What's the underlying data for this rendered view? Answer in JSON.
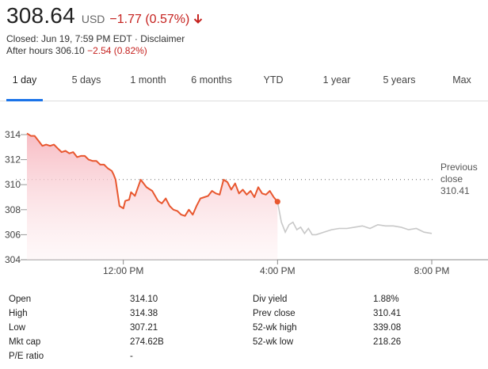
{
  "quote": {
    "price": "308.64",
    "currency": "USD",
    "change": "−1.77 (0.57%)",
    "closed_text": "Closed: Jun 19, 7:59 PM EDT · ",
    "disclaimer": "Disclaimer",
    "after_hours_label": "After hours 306.10",
    "after_hours_change": "−2.54 (0.82%)",
    "down_color": "#c5221f",
    "arrow_icon": "arrow-down-icon"
  },
  "tabs": [
    {
      "label": "1 day",
      "active": true
    },
    {
      "label": "5 days"
    },
    {
      "label": "1 month"
    },
    {
      "label": "6 months"
    },
    {
      "label": "YTD"
    },
    {
      "label": "1 year"
    },
    {
      "label": "5 years"
    },
    {
      "label": "Max"
    }
  ],
  "chart_data": {
    "type": "line",
    "y_ticks": [
      "314",
      "312",
      "310",
      "308",
      "306",
      "304"
    ],
    "x_ticks": [
      "12:00 PM",
      "4:00 PM",
      "8:00 PM"
    ],
    "ylim": [
      304,
      315
    ],
    "x_range_hours": [
      "9:30",
      "20:00"
    ],
    "previous_close_label_1": "Previous",
    "previous_close_label_2": "close",
    "previous_close_value": "310.41",
    "previous_close": 310.41,
    "line_color": "#e8572f",
    "after_hours_color": "#c8c8c8",
    "fill_color": "#f8c6cc",
    "regular_session": {
      "x_hours": [
        9.5,
        9.6,
        9.7,
        9.8,
        9.9,
        10.0,
        10.1,
        10.2,
        10.3,
        10.4,
        10.5,
        10.6,
        10.7,
        10.8,
        10.9,
        11.0,
        11.1,
        11.2,
        11.3,
        11.4,
        11.5,
        11.6,
        11.7,
        11.75,
        11.8,
        11.9,
        12.0,
        12.05,
        12.15,
        12.2,
        12.3,
        12.45,
        12.6,
        12.75,
        12.9,
        13.0,
        13.1,
        13.2,
        13.3,
        13.4,
        13.5,
        13.6,
        13.7,
        13.8,
        13.9,
        14.0,
        14.1,
        14.2,
        14.3,
        14.4,
        14.5,
        14.6,
        14.7,
        14.8,
        14.9,
        15.0,
        15.1,
        15.2,
        15.3,
        15.4,
        15.5,
        15.6,
        15.7,
        15.8,
        15.9,
        16.0
      ],
      "values": [
        314.1,
        313.9,
        313.9,
        313.5,
        313.1,
        313.2,
        313.1,
        313.2,
        312.9,
        312.6,
        312.7,
        312.5,
        312.6,
        312.2,
        312.3,
        312.3,
        312.0,
        311.9,
        311.9,
        311.6,
        311.6,
        311.3,
        311.1,
        310.8,
        310.4,
        308.3,
        308.1,
        308.7,
        308.8,
        309.4,
        309.1,
        310.4,
        309.8,
        309.5,
        308.7,
        308.5,
        308.9,
        308.3,
        308.0,
        307.9,
        307.6,
        307.5,
        308.0,
        307.6,
        308.3,
        308.9,
        309.0,
        309.1,
        309.5,
        309.3,
        309.2,
        310.4,
        310.2,
        309.6,
        310.1,
        309.3,
        309.6,
        309.2,
        309.5,
        309.0,
        309.8,
        309.3,
        309.2,
        309.5,
        309.0,
        308.64
      ]
    },
    "after_hours": {
      "x_hours": [
        16.0,
        16.1,
        16.2,
        16.3,
        16.4,
        16.5,
        16.6,
        16.7,
        16.8,
        16.9,
        17.0,
        17.2,
        17.4,
        17.6,
        17.8,
        18.0,
        18.2,
        18.4,
        18.6,
        18.8,
        19.0,
        19.2,
        19.4,
        19.6,
        19.8,
        20.0
      ],
      "values": [
        308.64,
        307.0,
        306.2,
        306.8,
        307.0,
        306.4,
        306.6,
        306.1,
        306.5,
        306.0,
        306.0,
        306.2,
        306.4,
        306.5,
        306.5,
        306.6,
        306.7,
        306.5,
        306.8,
        306.7,
        306.7,
        306.6,
        306.4,
        306.5,
        306.2,
        306.1
      ]
    },
    "grid": false
  },
  "stats": [
    {
      "l1": "Open",
      "v1": "314.10",
      "l2": "Div yield",
      "v2": "1.88%"
    },
    {
      "l1": "High",
      "v1": "314.38",
      "l2": "Prev close",
      "v2": "310.41"
    },
    {
      "l1": "Low",
      "v1": "307.21",
      "l2": "52-wk high",
      "v2": "339.08"
    },
    {
      "l1": "Mkt cap",
      "v1": "274.62B",
      "l2": "52-wk low",
      "v2": "218.26"
    },
    {
      "l1": "P/E ratio",
      "v1": "-",
      "l2": "",
      "v2": ""
    }
  ]
}
